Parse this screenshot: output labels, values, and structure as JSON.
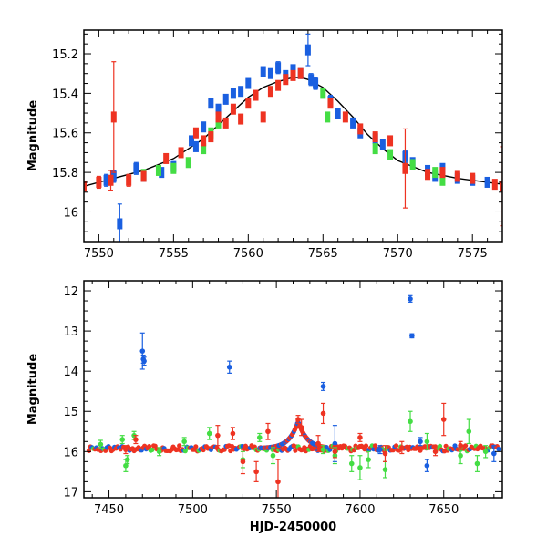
{
  "chart_data": [
    {
      "type": "scatter",
      "panel": "top",
      "xlabel": "",
      "ylabel": "Magnitude",
      "xlim": [
        7549,
        7577
      ],
      "ylim": [
        16.15,
        15.08
      ],
      "y_inverted": true,
      "x_ticks": [
        7550,
        7555,
        7560,
        7565,
        7570,
        7575
      ],
      "y_ticks": [
        15.2,
        15.4,
        15.6,
        15.8,
        16.0
      ],
      "y_tick_labels": [
        "15.2",
        "15.4",
        "15.6",
        "15.8",
        "16"
      ],
      "colors": {
        "blue": "#1a5fe0",
        "green": "#44dd44",
        "red": "#ee3322",
        "model": "#000000"
      },
      "model_curve": {
        "x": [
          7549,
          7551,
          7553,
          7555,
          7557,
          7558,
          7559,
          7560,
          7561,
          7562,
          7563,
          7563.5,
          7564,
          7565,
          7566,
          7567,
          7568,
          7569,
          7570,
          7572,
          7574,
          7577
        ],
        "y": [
          15.87,
          15.83,
          15.79,
          15.73,
          15.63,
          15.56,
          15.49,
          15.42,
          15.37,
          15.34,
          15.32,
          15.32,
          15.33,
          15.37,
          15.44,
          15.52,
          15.61,
          15.68,
          15.74,
          15.8,
          15.83,
          15.86
        ]
      },
      "series": [
        {
          "color": "blue",
          "x": [
            7550.5,
            7551,
            7551.4,
            7552.5,
            7553,
            7554.2,
            7555,
            7556.2,
            7556.5,
            7557,
            7557.5,
            7558,
            7558.5,
            7559,
            7559.5,
            7560,
            7561,
            7561.5,
            7562,
            7562.5,
            7563,
            7563.5,
            7564,
            7564.2,
            7564.5,
            7565.5,
            7566,
            7567,
            7567.5,
            7568.5,
            7569,
            7570.5,
            7571,
            7572,
            7572.5,
            7573,
            7574,
            7575,
            7576
          ],
          "y": [
            15.84,
            15.82,
            16.06,
            15.78,
            15.82,
            15.8,
            15.77,
            15.64,
            15.67,
            15.57,
            15.45,
            15.48,
            15.43,
            15.4,
            15.39,
            15.35,
            15.29,
            15.3,
            15.27,
            15.31,
            15.28,
            15.3,
            15.18,
            15.33,
            15.35,
            15.44,
            15.5,
            15.55,
            15.6,
            15.63,
            15.66,
            15.72,
            15.75,
            15.79,
            15.82,
            15.78,
            15.83,
            15.84,
            15.85
          ],
          "err": [
            0.03,
            0.03,
            0.1,
            0.03,
            0.02,
            0.02,
            0.02,
            0.02,
            0.02,
            0.02,
            0.02,
            0.02,
            0.02,
            0.02,
            0.02,
            0.02,
            0.02,
            0.02,
            0.03,
            0.02,
            0.02,
            0.02,
            0.08,
            0.03,
            0.03,
            0.03,
            0.02,
            0.02,
            0.02,
            0.02,
            0.02,
            0.03,
            0.02,
            0.02,
            0.02,
            0.02,
            0.02,
            0.02,
            0.02
          ]
        },
        {
          "color": "green",
          "x": [
            7553,
            7554,
            7555,
            7556,
            7557,
            7557.5,
            7558,
            7565,
            7565.3,
            7568.5,
            7569.5,
            7571,
            7572.5,
            7573
          ],
          "y": [
            15.81,
            15.79,
            15.78,
            15.75,
            15.68,
            15.6,
            15.55,
            15.4,
            15.52,
            15.68,
            15.71,
            15.76,
            15.8,
            15.84
          ],
          "err": [
            0.02,
            0.02,
            0.02,
            0.02,
            0.02,
            0.02,
            0.02,
            0.02,
            0.02,
            0.02,
            0.02,
            0.02,
            0.02,
            0.02
          ]
        },
        {
          "color": "red",
          "x": [
            7549,
            7550,
            7550.8,
            7551,
            7552,
            7553,
            7554.5,
            7555.5,
            7556.5,
            7557,
            7557.5,
            7558,
            7558.5,
            7559,
            7559.5,
            7560,
            7560.5,
            7561,
            7561.5,
            7562,
            7562.5,
            7563,
            7563.5,
            7565.5,
            7566.5,
            7567.5,
            7568.5,
            7569.5,
            7570.5,
            7572,
            7573,
            7574,
            7575,
            7576.5,
            7577
          ],
          "y": [
            15.87,
            15.85,
            15.84,
            15.52,
            15.84,
            15.82,
            15.73,
            15.7,
            15.6,
            15.64,
            15.62,
            15.52,
            15.55,
            15.48,
            15.53,
            15.45,
            15.41,
            15.52,
            15.39,
            15.36,
            15.33,
            15.31,
            15.3,
            15.45,
            15.52,
            15.58,
            15.62,
            15.64,
            15.78,
            15.81,
            15.8,
            15.82,
            15.83,
            15.86,
            15.87
          ],
          "err": [
            0.02,
            0.03,
            0.05,
            0.28,
            0.03,
            0.02,
            0.02,
            0.02,
            0.02,
            0.02,
            0.02,
            0.02,
            0.02,
            0.02,
            0.02,
            0.02,
            0.02,
            0.02,
            0.02,
            0.02,
            0.02,
            0.02,
            0.02,
            0.02,
            0.02,
            0.02,
            0.02,
            0.02,
            0.2,
            0.02,
            0.02,
            0.02,
            0.02,
            0.02,
            0.2
          ]
        }
      ]
    },
    {
      "type": "scatter",
      "panel": "bottom",
      "xlabel": "HJD-2450000",
      "ylabel": "Magnitude",
      "xlim": [
        7435,
        7685
      ],
      "ylim": [
        17.15,
        11.75
      ],
      "y_inverted": true,
      "x_ticks": [
        7450,
        7500,
        7550,
        7600,
        7650
      ],
      "y_ticks": [
        12,
        13,
        14,
        15,
        16,
        17
      ],
      "colors": {
        "blue": "#1a5fe0",
        "green": "#44dd44",
        "red": "#ee3322"
      },
      "baseline_mag": 15.92,
      "series": [
        {
          "color": "blue",
          "x": [
            7470,
            7470.5,
            7471,
            7522,
            7578,
            7585,
            7612,
            7630,
            7631,
            7636,
            7640,
            7680
          ],
          "y": [
            13.5,
            13.7,
            13.75,
            13.9,
            14.38,
            15.8,
            15.95,
            12.2,
            13.12,
            15.75,
            16.35,
            16.05
          ],
          "err": [
            0.45,
            0.1,
            0.1,
            0.15,
            0.1,
            0.45,
            0.1,
            0.08,
            0.05,
            0.1,
            0.15,
            0.2
          ]
        },
        {
          "color": "green",
          "x": [
            7445,
            7458,
            7460,
            7461,
            7465,
            7480,
            7495,
            7510,
            7530,
            7540,
            7548,
            7578,
            7585,
            7595,
            7600,
            7605,
            7615,
            7630,
            7640,
            7660,
            7665,
            7670,
            7675
          ],
          "y": [
            15.82,
            15.7,
            16.35,
            16.2,
            15.6,
            16.0,
            15.75,
            15.55,
            16.2,
            15.65,
            16.1,
            15.95,
            16.1,
            16.3,
            16.4,
            16.2,
            16.45,
            15.25,
            15.75,
            16.1,
            15.5,
            16.3,
            16.0
          ],
          "err": [
            0.1,
            0.1,
            0.15,
            0.1,
            0.1,
            0.1,
            0.1,
            0.15,
            0.2,
            0.1,
            0.2,
            0.1,
            0.2,
            0.2,
            0.3,
            0.2,
            0.2,
            0.25,
            0.2,
            0.2,
            0.3,
            0.2,
            0.15
          ]
        },
        {
          "color": "red",
          "x": [
            7460,
            7466,
            7515,
            7524,
            7530,
            7538,
            7545,
            7551,
            7563,
            7565,
            7575,
            7578,
            7585,
            7600,
            7615,
            7625,
            7645,
            7650,
            7660
          ],
          "y": [
            15.95,
            15.7,
            15.6,
            15.55,
            16.25,
            16.5,
            15.5,
            16.75,
            15.2,
            15.4,
            15.8,
            15.05,
            16.0,
            15.65,
            16.05,
            15.9,
            16.0,
            15.2,
            15.85
          ],
          "err": [
            0.1,
            0.1,
            0.25,
            0.15,
            0.3,
            0.25,
            0.2,
            0.55,
            0.1,
            0.2,
            0.2,
            0.25,
            0.15,
            0.1,
            0.2,
            0.15,
            0.1,
            0.4,
            0.1
          ]
        }
      ]
    }
  ]
}
